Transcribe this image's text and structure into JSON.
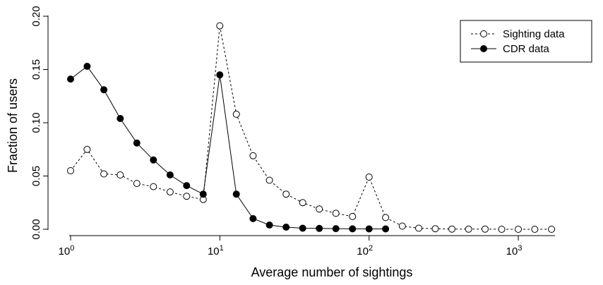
{
  "chart_data": {
    "type": "line",
    "xlabel": "Average number of sightings",
    "ylabel": "Fraction of users",
    "x_scale": "log",
    "xlim": [
      1,
      1800
    ],
    "ylim": [
      0,
      0.2
    ],
    "x_ticks": [
      {
        "base": "10",
        "exp": "0",
        "value": 1
      },
      {
        "base": "10",
        "exp": "1",
        "value": 10
      },
      {
        "base": "10",
        "exp": "2",
        "value": 100
      },
      {
        "base": "10",
        "exp": "3",
        "value": 1000
      }
    ],
    "y_ticks": [
      "0.00",
      "0.05",
      "0.10",
      "0.15",
      "0.20"
    ],
    "legend_position": "top-right",
    "series": [
      {
        "name": "Sighting data",
        "style": "dashed",
        "marker": "open-circle",
        "color": "#000000",
        "x": [
          1.0,
          1.29,
          1.67,
          2.15,
          2.78,
          3.59,
          4.64,
          5.99,
          7.74,
          10.0,
          12.9,
          16.7,
          21.5,
          27.8,
          35.9,
          46.4,
          59.9,
          77.4,
          100,
          129,
          167,
          215,
          278,
          359,
          464,
          599,
          774,
          1000,
          1290,
          1670
        ],
        "y": [
          0.055,
          0.075,
          0.052,
          0.051,
          0.043,
          0.04,
          0.035,
          0.031,
          0.028,
          0.191,
          0.108,
          0.069,
          0.046,
          0.033,
          0.025,
          0.019,
          0.015,
          0.012,
          0.049,
          0.011,
          0.003,
          0.001,
          0.0005,
          0.0002,
          0.0001,
          0.0001,
          0.0,
          0.0,
          0.0,
          0.0
        ]
      },
      {
        "name": "CDR data",
        "style": "solid",
        "marker": "filled-circle",
        "color": "#000000",
        "x": [
          1.0,
          1.29,
          1.67,
          2.15,
          2.78,
          3.59,
          4.64,
          5.99,
          7.74,
          10.0,
          12.9,
          16.7,
          21.5,
          27.8,
          35.9,
          46.4,
          59.9,
          77.4,
          100,
          129
        ],
        "y": [
          0.141,
          0.153,
          0.131,
          0.104,
          0.081,
          0.065,
          0.051,
          0.041,
          0.033,
          0.145,
          0.033,
          0.01,
          0.004,
          0.002,
          0.001,
          0.0008,
          0.0006,
          0.0004,
          0.0003,
          0.0003
        ]
      }
    ]
  }
}
